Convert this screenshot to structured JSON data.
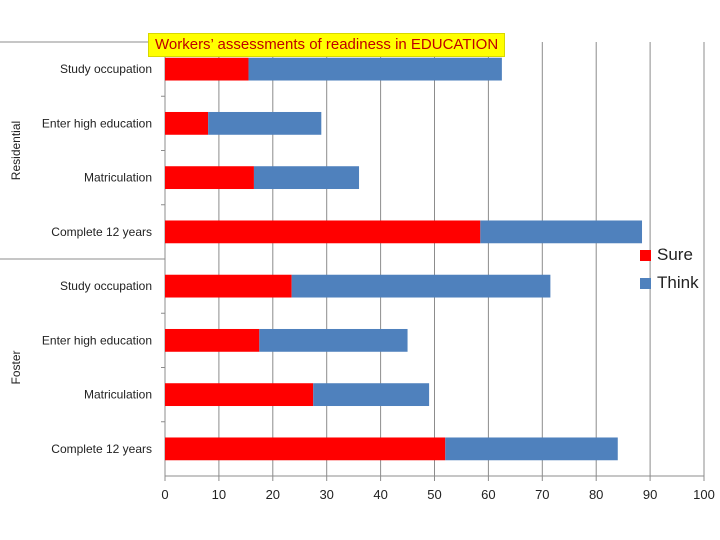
{
  "chart_data": {
    "type": "bar",
    "orientation": "horizontal",
    "stacked": true,
    "title": "Workers’ assessments of readiness in EDUCATION",
    "groups": [
      {
        "name": "Residential",
        "categories": [
          "Study occupation",
          "Enter high education",
          "Matriculation",
          "Complete 12 years"
        ]
      },
      {
        "name": "Foster",
        "categories": [
          "Study occupation",
          "Enter high education",
          "Matriculation",
          "Complete 12 years"
        ]
      }
    ],
    "series": [
      {
        "name": "Sure",
        "color": "#ff0000",
        "values": [
          15.5,
          8,
          16.5,
          58.5,
          23.5,
          17.5,
          27.5,
          52
        ]
      },
      {
        "name": "Think",
        "color": "#4f81bd",
        "values": [
          47,
          21,
          19.5,
          30,
          48,
          27.5,
          21.5,
          32
        ]
      }
    ],
    "xlim": [
      0,
      100
    ],
    "xticks": [
      0,
      10,
      20,
      30,
      40,
      50,
      60,
      70,
      80,
      90,
      100
    ],
    "grid": true,
    "legend_position": "right"
  }
}
